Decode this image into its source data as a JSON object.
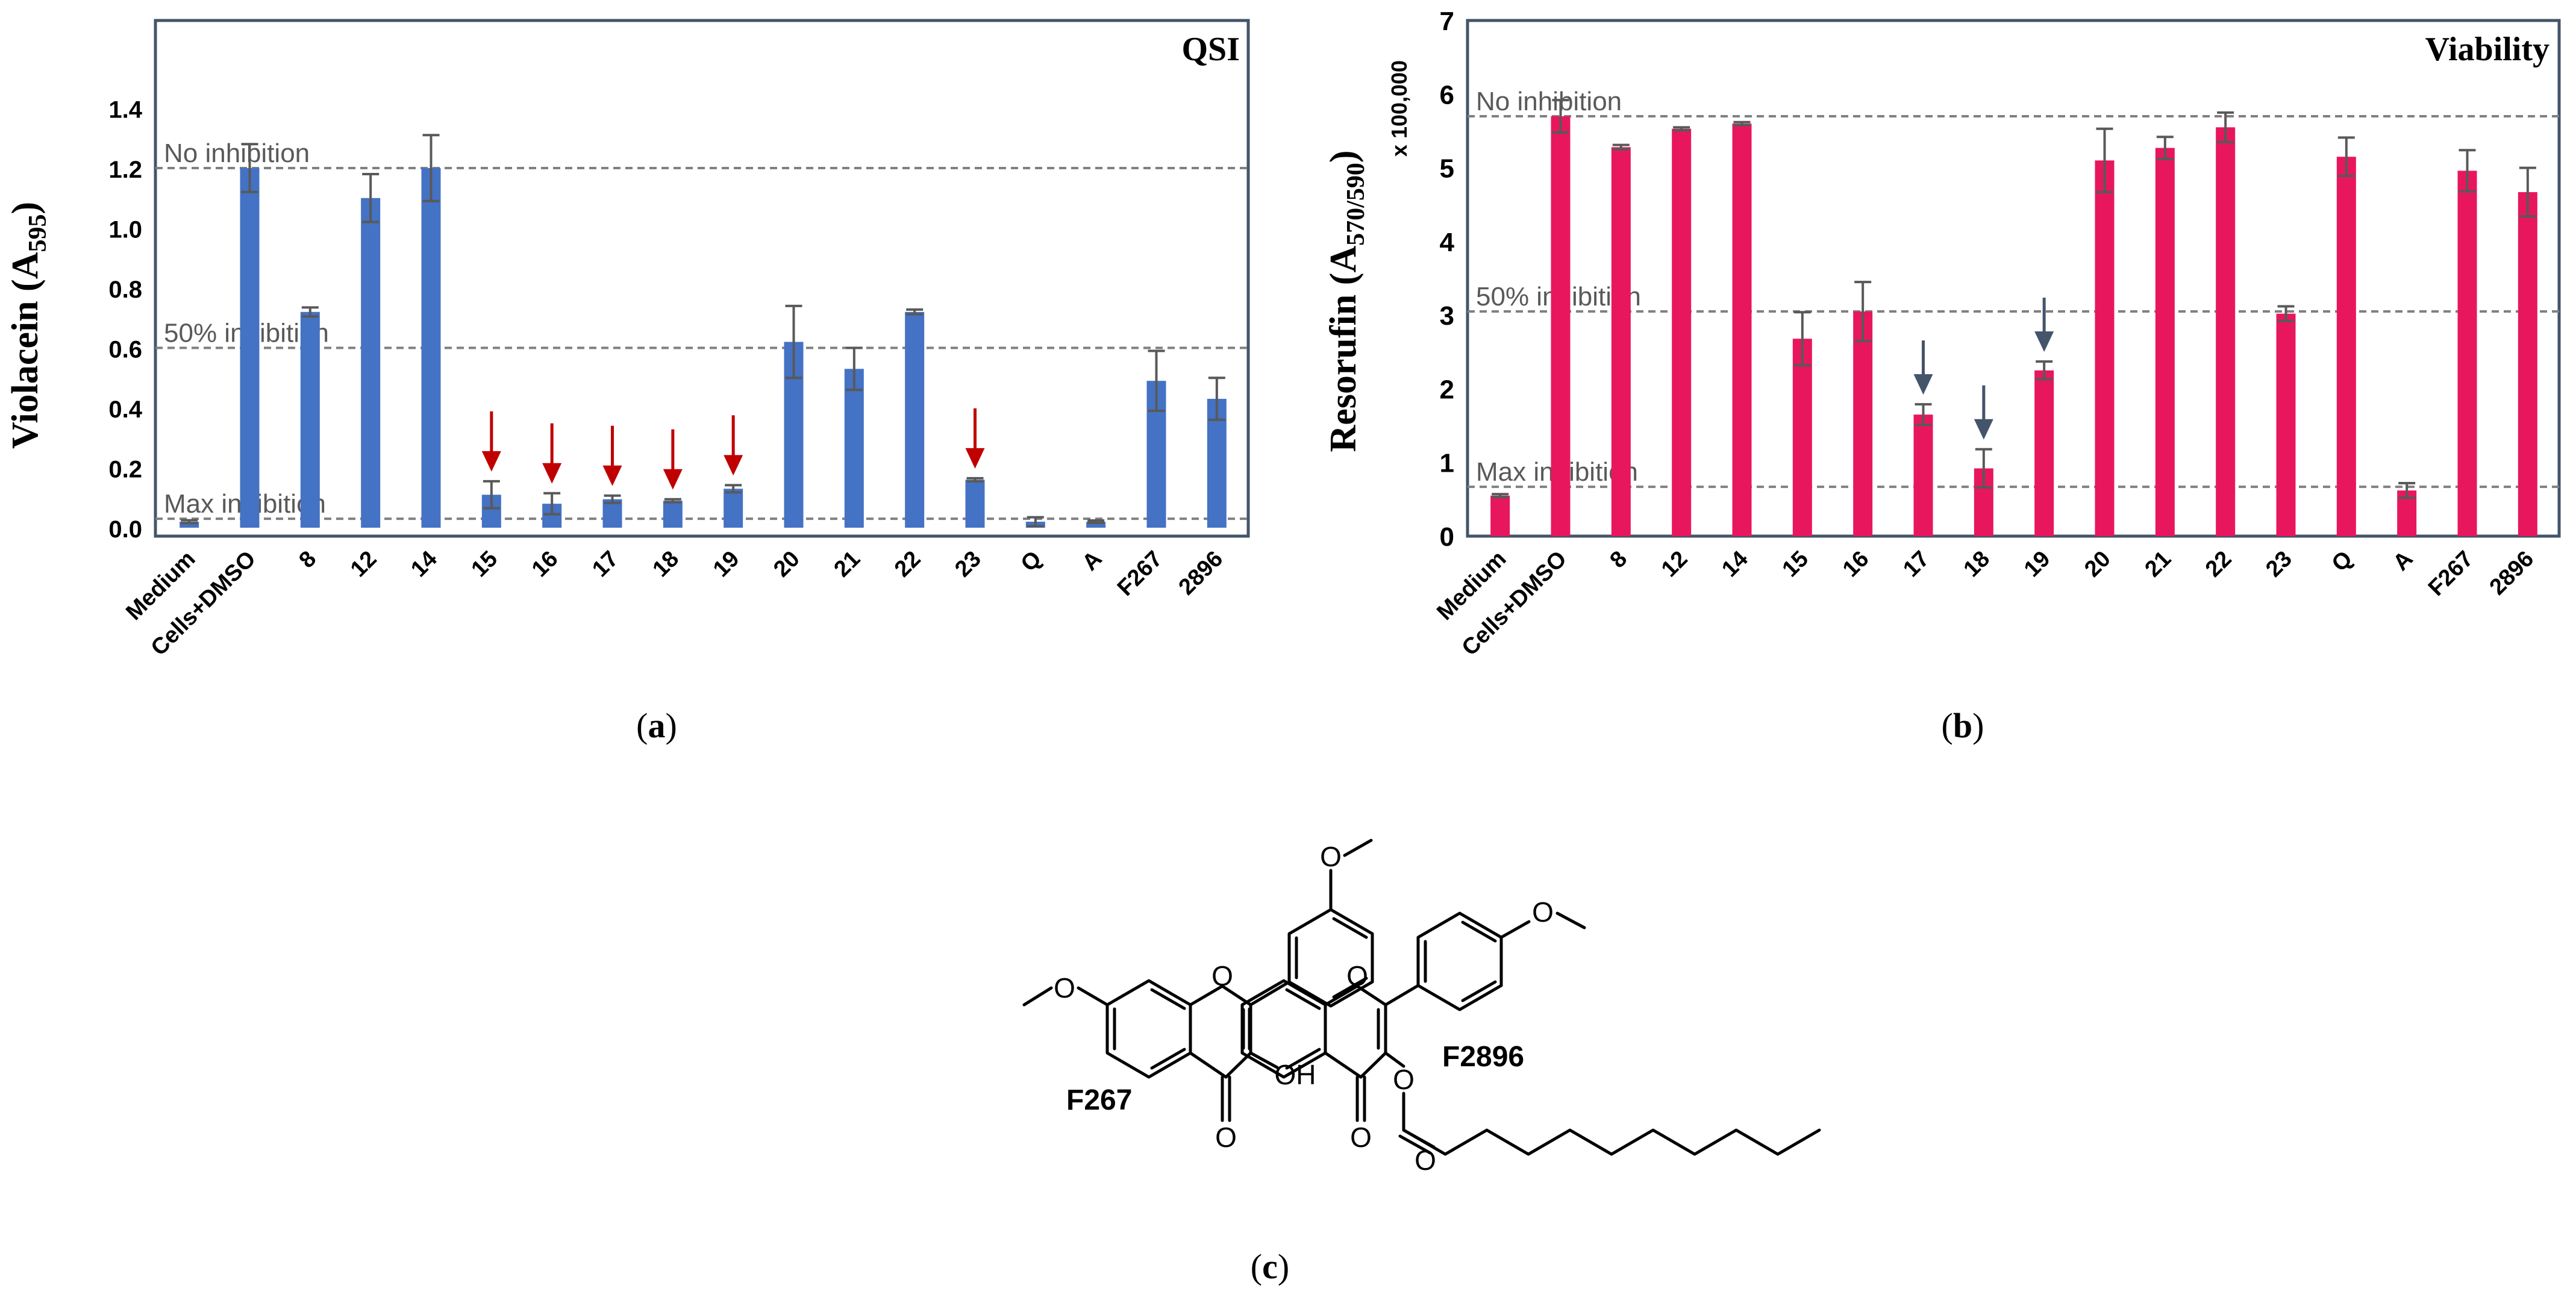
{
  "panels": {
    "a": "(a)",
    "b": "(b)",
    "c": "(c)"
  },
  "reference_line_labels": {
    "no_inhibition": "No inhibition",
    "half_inhibition": "50% inhibition",
    "max_inhibition": "Max inhibition"
  },
  "colors": {
    "qsi_bar": "#4472C4",
    "viability_bar": "#E8175D",
    "red_arrow": "#C00000",
    "gray_arrow": "#44546A",
    "frame": "#44546A"
  },
  "chart_data": [
    {
      "type": "bar",
      "title": "QSI",
      "ylabel": "Violacein (A595)",
      "ylabel_main": "Violacein (A",
      "ylabel_sub": "595",
      "ylabel_close": ")",
      "ylim": [
        0,
        1.6
      ],
      "yticks": [
        "0.0",
        "0.2",
        "0.4",
        "0.6",
        "0.8",
        "1.0",
        "1.2",
        "1.4"
      ],
      "categories": [
        "Medium",
        "Cells+DMSO",
        "8",
        "12",
        "14",
        "15",
        "16",
        "17",
        "18",
        "19",
        "20",
        "21",
        "22",
        "23",
        "Q",
        "A",
        "F267",
        "2896"
      ],
      "values": [
        0.02,
        1.2,
        0.72,
        1.1,
        1.2,
        0.11,
        0.08,
        0.095,
        0.09,
        0.13,
        0.62,
        0.53,
        0.72,
        0.16,
        0.02,
        0.02,
        0.49,
        0.43
      ],
      "errors": [
        0.005,
        0.08,
        0.015,
        0.08,
        0.11,
        0.045,
        0.035,
        0.012,
        0.005,
        0.012,
        0.12,
        0.07,
        0.008,
        0.005,
        0.015,
        0.004,
        0.1,
        0.07
      ],
      "reference_lines": {
        "no_inhibition": 1.2,
        "half_inhibition": 0.6,
        "max_inhibition": 0.03
      },
      "arrows": [
        "15",
        "16",
        "17",
        "18",
        "19",
        "23"
      ],
      "grid": false
    },
    {
      "type": "bar",
      "title": "Viability",
      "ylabel": "Resorufin (A570/590)",
      "ylabel_main": "Resorufin (A",
      "ylabel_sub": "570/590",
      "ylabel_close": ")",
      "yunit": "x 100,000",
      "ylim": [
        0,
        7
      ],
      "yticks": [
        "0",
        "1",
        "2",
        "3",
        "4",
        "5",
        "6",
        "7"
      ],
      "categories": [
        "Medium",
        "Cells+DMSO",
        "8",
        "12",
        "14",
        "15",
        "16",
        "17",
        "18",
        "19",
        "20",
        "21",
        "22",
        "23",
        "Q",
        "A",
        "F267",
        "2896"
      ],
      "values": [
        0.55,
        5.7,
        5.28,
        5.53,
        5.6,
        2.68,
        3.05,
        1.65,
        0.92,
        2.25,
        5.1,
        5.27,
        5.55,
        3.02,
        5.15,
        0.62,
        4.96,
        4.67
      ],
      "errors": [
        0.02,
        0.22,
        0.03,
        0.02,
        0.02,
        0.36,
        0.4,
        0.14,
        0.26,
        0.12,
        0.43,
        0.15,
        0.2,
        0.1,
        0.26,
        0.1,
        0.28,
        0.33
      ],
      "reference_lines": {
        "no_inhibition": 5.7,
        "half_inhibition": 3.05,
        "max_inhibition": 0.67
      },
      "arrows": [
        "17",
        "18",
        "19"
      ],
      "grid": false
    }
  ],
  "structures": {
    "f267_label": "F267",
    "f2896_label": "F2896",
    "atom_o": "O",
    "atom_oh": "OH"
  }
}
